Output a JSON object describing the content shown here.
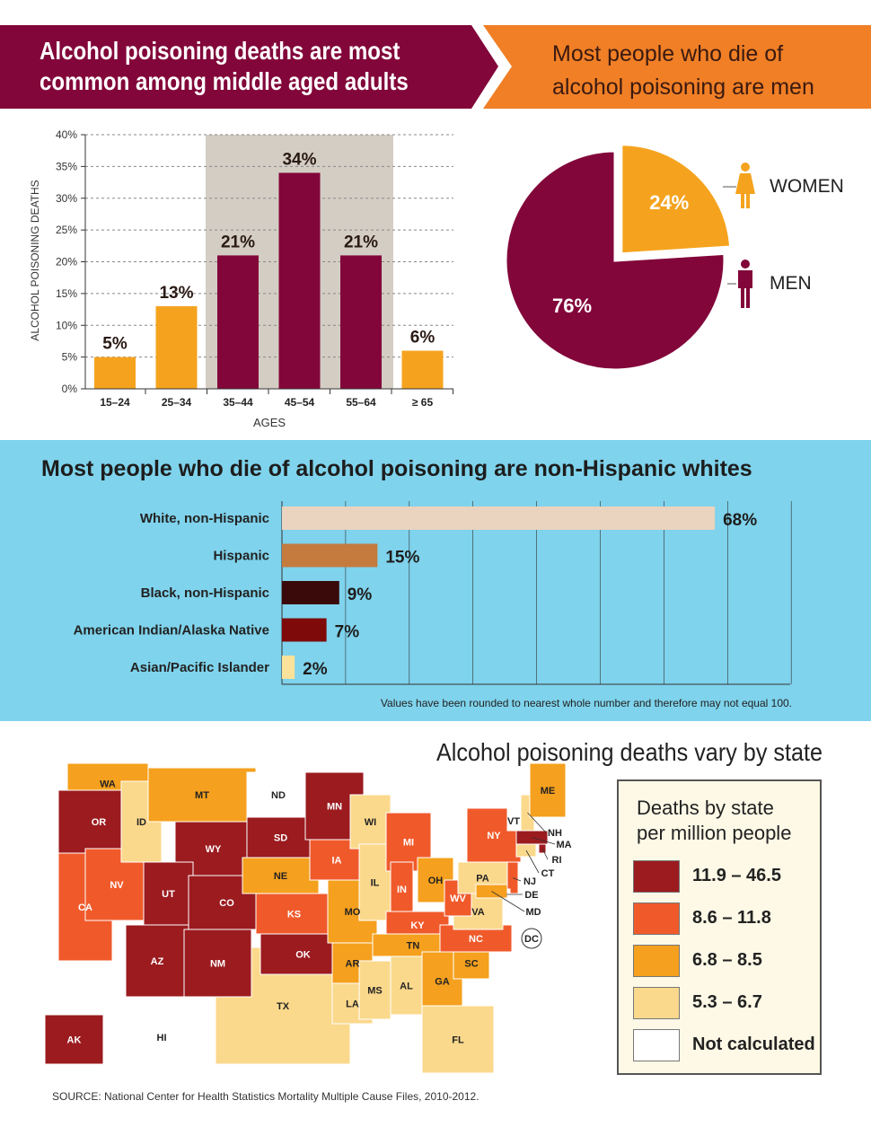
{
  "header": {
    "left_title_line1": "Alcohol poisoning deaths are most",
    "left_title_line2": "common among middle aged adults",
    "right_title_line1": "Most people who die of",
    "right_title_line2": "alcohol poisoning are men"
  },
  "chart_data": [
    {
      "type": "bar",
      "ylabel": "ALCOHOL POISONING DEATHS",
      "xlabel": "AGES",
      "categories": [
        "15–24",
        "25–34",
        "35–44",
        "45–54",
        "55–64",
        "≥ 65"
      ],
      "values": [
        5,
        13,
        21,
        34,
        21,
        6
      ],
      "data_labels": [
        "5%",
        "13%",
        "21%",
        "34%",
        "21%",
        "6%"
      ],
      "highlighted": [
        "35–44",
        "45–54",
        "55–64"
      ],
      "yticks": [
        "0%",
        "5%",
        "10%",
        "15%",
        "20%",
        "25%",
        "30%",
        "35%",
        "40%"
      ],
      "ylim": [
        0,
        40
      ],
      "grid": true,
      "colors": {
        "default": "#f5a31e",
        "highlight": "#82063a",
        "highlight_band": "#d4cdc4"
      }
    },
    {
      "type": "pie",
      "slices": [
        {
          "name": "WOMEN",
          "value": 24,
          "label": "24%",
          "color": "#f5a31e"
        },
        {
          "name": "MEN",
          "value": 76,
          "label": "76%",
          "color": "#82063a"
        }
      ]
    },
    {
      "type": "bar",
      "orientation": "horizontal",
      "title": "Most people who die of alcohol poisoning are non-Hispanic whites",
      "categories": [
        "White, non-Hispanic",
        "Hispanic",
        "Black, non-Hispanic",
        "American Indian/Alaska Native",
        "Asian/Pacific Islander"
      ],
      "values": [
        68,
        15,
        9,
        7,
        2
      ],
      "data_labels": [
        "68%",
        "15%",
        "9%",
        "7%",
        "2%"
      ],
      "colors": [
        "#ead3bf",
        "#c57a3e",
        "#3a0a0a",
        "#7e0a0a",
        "#fbe29a"
      ],
      "xlim": [
        0,
        80
      ],
      "grid": true,
      "note": "Values have been rounded to nearest whole number and therefore may not equal 100."
    },
    {
      "type": "choropleth",
      "title": "Alcohol poisoning deaths vary by state",
      "legend_title_line1": "Deaths by state",
      "legend_title_line2": "per million people",
      "classes": [
        {
          "label": "11.9 – 46.5",
          "color": "#9b1b1f"
        },
        {
          "label": "8.6 – 11.8",
          "color": "#f05a2b"
        },
        {
          "label": "6.8 – 8.5",
          "color": "#f5a01e"
        },
        {
          "label": "5.3 – 6.7",
          "color": "#fbd98c"
        },
        {
          "label": "Not calculated",
          "color": "#ffffff"
        }
      ],
      "states": {
        "WA": 2,
        "OR": 0,
        "CA": 1,
        "NV": 1,
        "ID": 3,
        "MT": 2,
        "WY": 0,
        "UT": 0,
        "CO": 0,
        "AZ": 0,
        "NM": 0,
        "ND": 4,
        "SD": 0,
        "NE": 2,
        "KS": 1,
        "OK": 0,
        "TX": 3,
        "MN": 0,
        "IA": 1,
        "MO": 2,
        "AR": 2,
        "LA": 3,
        "WI": 3,
        "IL": 3,
        "MI": 1,
        "IN": 1,
        "OH": 2,
        "KY": 1,
        "TN": 2,
        "MS": 3,
        "AL": 3,
        "GA": 2,
        "FL": 3,
        "SC": 2,
        "NC": 1,
        "VA": 3,
        "WV": 1,
        "PA": 3,
        "NY": 1,
        "VT": 4,
        "NH": 3,
        "ME": 2,
        "MA": 0,
        "RI": 0,
        "CT": 3,
        "NJ": 1,
        "DE": 4,
        "MD": 2,
        "DC": 4,
        "AK": 0,
        "HI": 4
      }
    }
  ],
  "source": "SOURCE: National Center for Health Statistics Mortality Multiple Cause Files, 2010-2012."
}
